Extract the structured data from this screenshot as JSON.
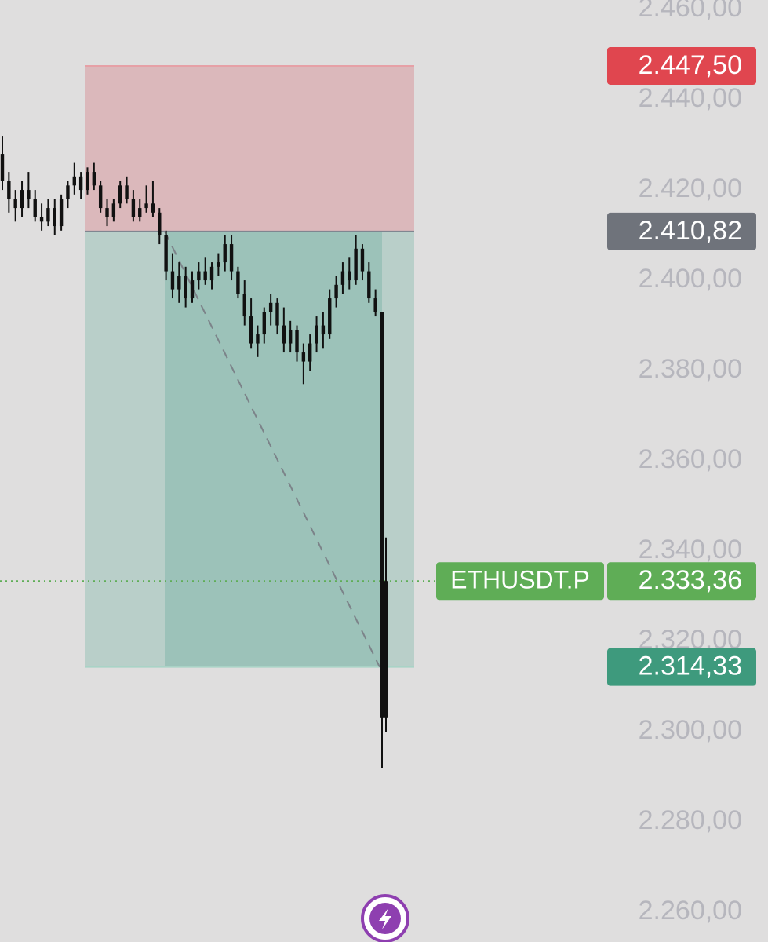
{
  "chart_data": {
    "type": "candlestick",
    "ylim": [
      2253.4,
      2462.1
    ],
    "yticks": [
      {
        "value": 2460,
        "label": "2.460,00"
      },
      {
        "value": 2440,
        "label": "2.440,00"
      },
      {
        "value": 2420,
        "label": "2.420,00"
      },
      {
        "value": 2400,
        "label": "2.400,00"
      },
      {
        "value": 2380,
        "label": "2.380,00"
      },
      {
        "value": 2360,
        "label": "2.360,00"
      },
      {
        "value": 2340,
        "label": "2.340,00"
      },
      {
        "value": 2320,
        "label": "2.320,00"
      },
      {
        "value": 2300,
        "label": "2.300,00"
      },
      {
        "value": 2280,
        "label": "2.280,00"
      },
      {
        "value": 2260,
        "label": "2.260,00"
      }
    ],
    "color": "#111111",
    "open": [
      2428,
      2422,
      2418,
      2416,
      2420,
      2418,
      2414,
      2413,
      2416,
      2412,
      2418,
      2421,
      2423,
      2420,
      2424,
      2421,
      2416,
      2414,
      2417,
      2421,
      2418,
      2414,
      2416,
      2417,
      2415,
      2410,
      2402,
      2398,
      2401,
      2396,
      2400,
      2402,
      2400,
      2403,
      2404,
      2408,
      2402,
      2397,
      2392,
      2386,
      2388,
      2393,
      2395,
      2390,
      2386,
      2389,
      2384,
      2382,
      2386,
      2390,
      2388,
      2396,
      2399,
      2402,
      2400,
      2407,
      2402,
      2396,
      2393,
      2303
    ],
    "high": [
      2432,
      2424,
      2420,
      2422,
      2424,
      2420,
      2417,
      2418,
      2418,
      2419,
      2422,
      2426,
      2424,
      2425,
      2426,
      2422,
      2418,
      2418,
      2422,
      2423,
      2420,
      2418,
      2421,
      2422,
      2416,
      2411,
      2406,
      2404,
      2403,
      2402,
      2404,
      2405,
      2404,
      2406,
      2410,
      2410,
      2403,
      2400,
      2396,
      2390,
      2394,
      2397,
      2396,
      2394,
      2391,
      2390,
      2386,
      2388,
      2392,
      2393,
      2398,
      2401,
      2404,
      2405,
      2410,
      2408,
      2404,
      2398,
      2393,
      2343
    ],
    "low": [
      2420,
      2415,
      2413,
      2414,
      2416,
      2413,
      2411,
      2412,
      2410,
      2411,
      2416,
      2419,
      2418,
      2419,
      2420,
      2415,
      2412,
      2413,
      2416,
      2417,
      2413,
      2413,
      2415,
      2414,
      2408,
      2400,
      2396,
      2395,
      2394,
      2395,
      2398,
      2399,
      2398,
      2401,
      2402,
      2400,
      2396,
      2390,
      2385,
      2383,
      2386,
      2390,
      2388,
      2384,
      2384,
      2382,
      2377,
      2380,
      2384,
      2385,
      2387,
      2394,
      2397,
      2398,
      2399,
      2400,
      2395,
      2392,
      2292,
      2300
    ],
    "close": [
      2422,
      2418,
      2416,
      2420,
      2418,
      2414,
      2413,
      2416,
      2412,
      2418,
      2421,
      2423,
      2420,
      2424,
      2421,
      2416,
      2414,
      2417,
      2421,
      2418,
      2414,
      2416,
      2417,
      2415,
      2410,
      2402,
      2398,
      2401,
      2396,
      2400,
      2402,
      2400,
      2403,
      2404,
      2408,
      2402,
      2397,
      2392,
      2386,
      2388,
      2393,
      2395,
      2390,
      2386,
      2389,
      2384,
      2382,
      2386,
      2390,
      2388,
      2396,
      2399,
      2402,
      2400,
      2407,
      2402,
      2396,
      2393,
      2303,
      2333.36
    ],
    "position": {
      "stop": {
        "value": 2447.5,
        "label": "2.447,50",
        "color": "#e0464f"
      },
      "entry": {
        "value": 2410.82,
        "label": "2.410,82",
        "color": "#6f737b"
      },
      "target": {
        "value": 2314.33,
        "label": "2.314,33",
        "color": "#3e9a7d"
      }
    },
    "last_price": {
      "symbol": "ETHUSDT.P",
      "value": 2333.36,
      "label": "2.333,36",
      "color": "#5fad56"
    }
  }
}
